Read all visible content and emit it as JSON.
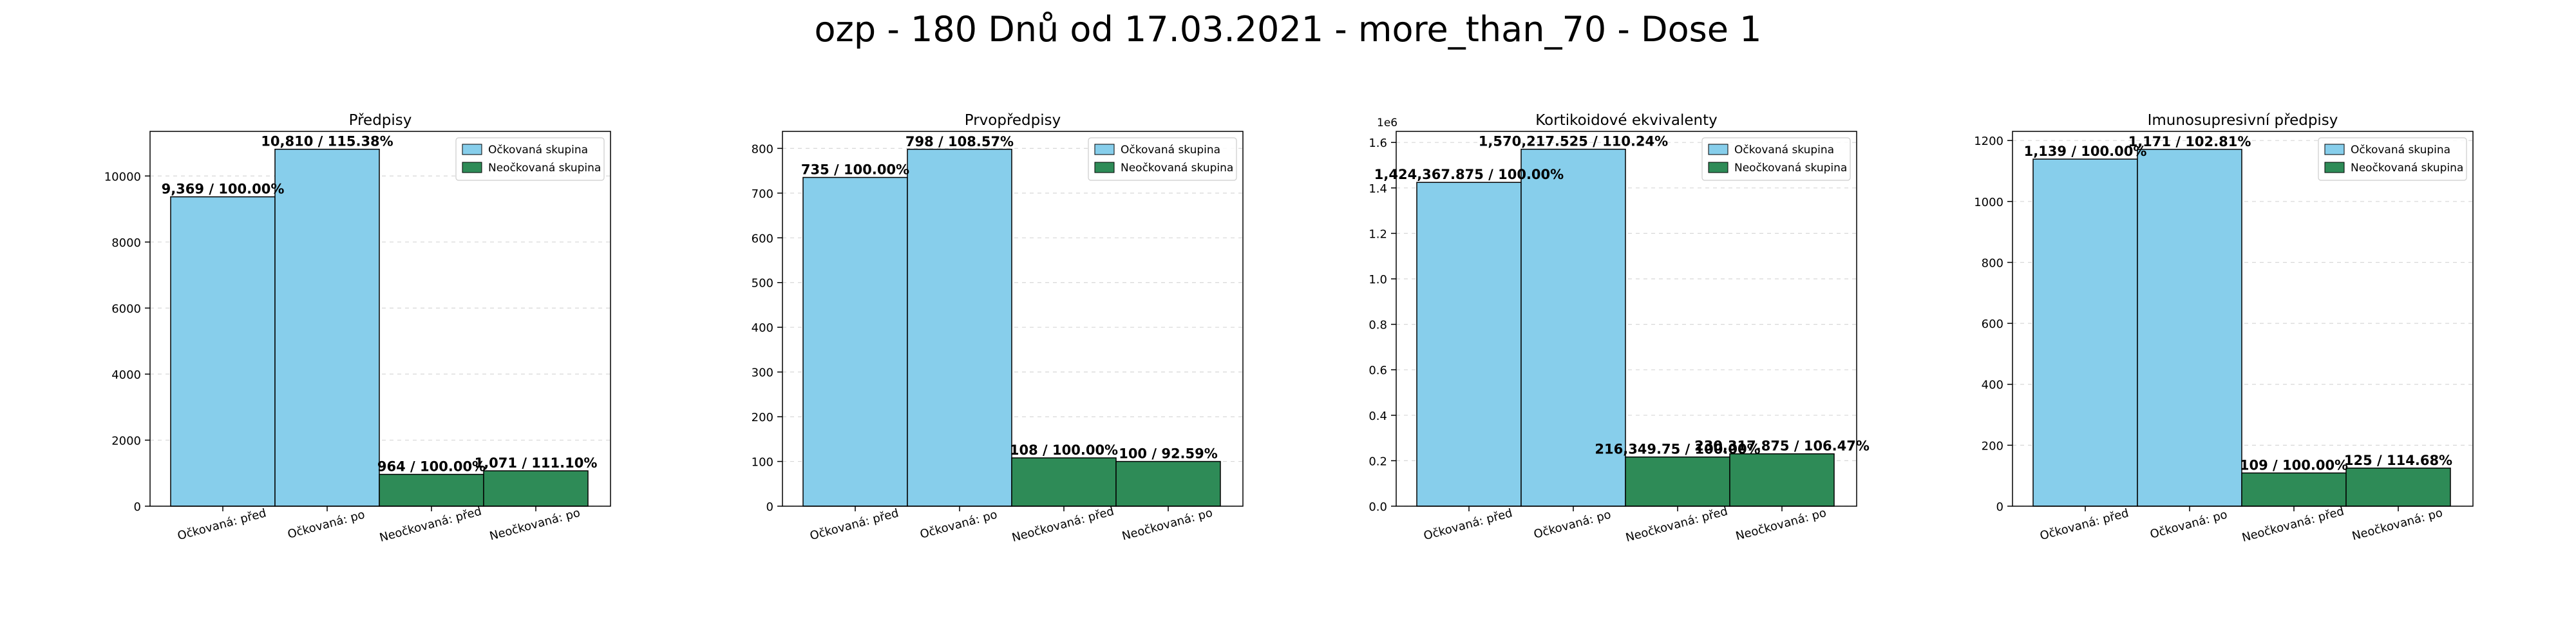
{
  "suptitle": "ozp - 180 Dnů od 17.03.2021 - more_than_70 - Dose 1",
  "colors": {
    "vaccinated": "#87ceeb",
    "unvaccinated": "#2e8b57"
  },
  "legend_labels": [
    "Očkovaná skupina",
    "Neočkovaná skupina"
  ],
  "chart_data": [
    {
      "type": "bar",
      "title": "Předpisy",
      "categories": [
        "Očkovaná: před",
        "Očkovaná: po",
        "Neočkovaná: před",
        "Neočkovaná: po"
      ],
      "values": [
        9369,
        10810,
        964,
        1071
      ],
      "bar_labels": [
        "9,369 / 100.00%",
        "10,810 / 115.38%",
        "964 / 100.00%",
        "1,071 / 111.10%"
      ],
      "ylim": [
        0,
        11351
      ],
      "yticks": [
        0,
        2000,
        4000,
        6000,
        8000,
        10000
      ],
      "ytick_labels": [
        "0",
        "2000",
        "4000",
        "6000",
        "8000",
        "10000"
      ],
      "offset_text": "",
      "legend": [
        "Očkovaná skupina",
        "Neočkovaná skupina"
      ],
      "legend_position": "top-right",
      "grid": "y"
    },
    {
      "type": "bar",
      "title": "Prvopředpisy",
      "categories": [
        "Očkovaná: před",
        "Očkovaná: po",
        "Neočkovaná: před",
        "Neočkovaná: po"
      ],
      "values": [
        735,
        798,
        108,
        100
      ],
      "bar_labels": [
        "735 / 100.00%",
        "798 / 108.57%",
        "108 / 100.00%",
        "100 / 92.59%"
      ],
      "ylim": [
        0,
        838
      ],
      "yticks": [
        0,
        100,
        200,
        300,
        400,
        500,
        600,
        700,
        800
      ],
      "ytick_labels": [
        "0",
        "100",
        "200",
        "300",
        "400",
        "500",
        "600",
        "700",
        "800"
      ],
      "offset_text": "",
      "legend": [
        "Očkovaná skupina",
        "Neočkovaná skupina"
      ],
      "legend_position": "top-right",
      "grid": "y"
    },
    {
      "type": "bar",
      "title": "Kortikoidové ekvivalenty",
      "categories": [
        "Očkovaná: před",
        "Očkovaná: po",
        "Neočkovaná: před",
        "Neočkovaná: po"
      ],
      "values": [
        1424367.875,
        1570217.525,
        216349.75,
        230317.875
      ],
      "bar_labels": [
        "1,424,367.875 / 100.00%",
        "1,570,217.525 / 110.24%",
        "216,349.75 / 100.00%",
        "230,317.875 / 106.47%"
      ],
      "ylim": [
        0,
        1648728
      ],
      "yticks": [
        0,
        200000,
        400000,
        600000,
        800000,
        1000000,
        1200000,
        1400000,
        1600000
      ],
      "ytick_labels": [
        "0.0",
        "0.2",
        "0.4",
        "0.6",
        "0.8",
        "1.0",
        "1.2",
        "1.4",
        "1.6"
      ],
      "offset_text": "1e6",
      "legend": [
        "Očkovaná skupina",
        "Neočkovaná skupina"
      ],
      "legend_position": "top-right",
      "grid": "y"
    },
    {
      "type": "bar",
      "title": "Imunosupresivní předpisy",
      "categories": [
        "Očkovaná: před",
        "Očkovaná: po",
        "Neočkovaná: před",
        "Neočkovaná: po"
      ],
      "values": [
        1139,
        1171,
        109,
        125
      ],
      "bar_labels": [
        "1,139 / 100.00%",
        "1,171 / 102.81%",
        "109 / 100.00%",
        "125 / 114.68%"
      ],
      "ylim": [
        0,
        1230
      ],
      "yticks": [
        0,
        200,
        400,
        600,
        800,
        1000,
        1200
      ],
      "ytick_labels": [
        "0",
        "200",
        "400",
        "600",
        "800",
        "1000",
        "1200"
      ],
      "offset_text": "",
      "legend": [
        "Očkovaná skupina",
        "Neočkovaná skupina"
      ],
      "legend_position": "top-right",
      "grid": "y"
    }
  ]
}
